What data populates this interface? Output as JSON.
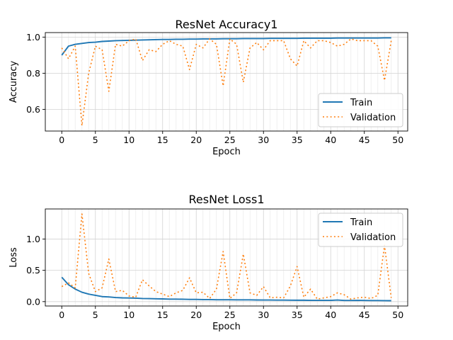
{
  "chart_data": [
    {
      "type": "line",
      "title": "ResNet Accuracy1",
      "xlabel": "Epoch",
      "ylabel": "Accuracy",
      "xlim": [
        -2.45,
        51.45
      ],
      "ylim": [
        0.48,
        1.025
      ],
      "xticks": [
        0,
        5,
        10,
        15,
        20,
        25,
        30,
        35,
        40,
        45,
        50
      ],
      "yticks": [
        0.6,
        0.8,
        1.0
      ],
      "ytick_labels": [
        "0.6",
        "0.8",
        "1.0"
      ],
      "grid": true,
      "legend_position": "lower-right",
      "x": [
        0,
        1,
        2,
        3,
        4,
        5,
        6,
        7,
        8,
        9,
        10,
        11,
        12,
        13,
        14,
        15,
        16,
        17,
        18,
        19,
        20,
        21,
        22,
        23,
        24,
        25,
        26,
        27,
        28,
        29,
        30,
        31,
        32,
        33,
        34,
        35,
        36,
        37,
        38,
        39,
        40,
        41,
        42,
        43,
        44,
        45,
        46,
        47,
        48,
        49
      ],
      "series": [
        {
          "name": "Train",
          "color": "#1f77b4",
          "style": "solid",
          "values": [
            0.9,
            0.95,
            0.96,
            0.965,
            0.97,
            0.972,
            0.976,
            0.978,
            0.98,
            0.981,
            0.982,
            0.983,
            0.984,
            0.985,
            0.986,
            0.987,
            0.987,
            0.988,
            0.988,
            0.989,
            0.989,
            0.99,
            0.99,
            0.99,
            0.991,
            0.991,
            0.991,
            0.992,
            0.992,
            0.992,
            0.992,
            0.993,
            0.993,
            0.993,
            0.993,
            0.993,
            0.994,
            0.994,
            0.994,
            0.994,
            0.994,
            0.995,
            0.995,
            0.995,
            0.995,
            0.995,
            0.995,
            0.995,
            0.996,
            0.996
          ]
        },
        {
          "name": "Validation",
          "color": "#ff7f0e",
          "style": "dotted",
          "values": [
            0.94,
            0.88,
            0.95,
            0.51,
            0.8,
            0.95,
            0.93,
            0.7,
            0.96,
            0.95,
            0.98,
            0.99,
            0.87,
            0.93,
            0.92,
            0.96,
            0.98,
            0.96,
            0.95,
            0.82,
            0.96,
            0.94,
            0.99,
            0.96,
            0.73,
            0.99,
            0.96,
            0.75,
            0.94,
            0.97,
            0.93,
            0.98,
            0.98,
            0.98,
            0.88,
            0.84,
            0.98,
            0.94,
            0.98,
            0.98,
            0.97,
            0.95,
            0.96,
            0.99,
            0.98,
            0.98,
            0.98,
            0.95,
            0.76,
            0.98
          ]
        }
      ]
    },
    {
      "type": "line",
      "title": "ResNet Loss1",
      "xlabel": "Epoch",
      "ylabel": "Loss",
      "xlim": [
        -2.45,
        51.45
      ],
      "ylim": [
        -0.07,
        1.48
      ],
      "xticks": [
        0,
        5,
        10,
        15,
        20,
        25,
        30,
        35,
        40,
        45,
        50
      ],
      "yticks": [
        0.0,
        0.5,
        1.0
      ],
      "ytick_labels": [
        "0.0",
        "0.5",
        "1.0"
      ],
      "grid": true,
      "legend_position": "upper-right",
      "x": [
        0,
        1,
        2,
        3,
        4,
        5,
        6,
        7,
        8,
        9,
        10,
        11,
        12,
        13,
        14,
        15,
        16,
        17,
        18,
        19,
        20,
        21,
        22,
        23,
        24,
        25,
        26,
        27,
        28,
        29,
        30,
        31,
        32,
        33,
        34,
        35,
        36,
        37,
        38,
        39,
        40,
        41,
        42,
        43,
        44,
        45,
        46,
        47,
        48,
        49
      ],
      "series": [
        {
          "name": "Train",
          "color": "#1f77b4",
          "style": "solid",
          "values": [
            0.39,
            0.27,
            0.2,
            0.15,
            0.12,
            0.1,
            0.08,
            0.075,
            0.065,
            0.06,
            0.058,
            0.055,
            0.05,
            0.048,
            0.045,
            0.043,
            0.04,
            0.04,
            0.038,
            0.035,
            0.035,
            0.033,
            0.032,
            0.03,
            0.03,
            0.03,
            0.028,
            0.028,
            0.028,
            0.026,
            0.025,
            0.025,
            0.024,
            0.024,
            0.023,
            0.022,
            0.022,
            0.02,
            0.02,
            0.02,
            0.02,
            0.025,
            0.018,
            0.018,
            0.02,
            0.018,
            0.017,
            0.017,
            0.016,
            0.015
          ]
        },
        {
          "name": "Validation",
          "color": "#ff7f0e",
          "style": "dotted",
          "values": [
            0.24,
            0.3,
            0.22,
            1.4,
            0.45,
            0.16,
            0.22,
            0.68,
            0.16,
            0.18,
            0.09,
            0.07,
            0.35,
            0.25,
            0.16,
            0.12,
            0.08,
            0.14,
            0.18,
            0.38,
            0.14,
            0.15,
            0.05,
            0.2,
            0.8,
            0.05,
            0.14,
            0.76,
            0.14,
            0.1,
            0.24,
            0.06,
            0.07,
            0.06,
            0.25,
            0.56,
            0.07,
            0.2,
            0.04,
            0.06,
            0.08,
            0.14,
            0.11,
            0.04,
            0.06,
            0.07,
            0.05,
            0.1,
            0.9,
            0.06
          ]
        }
      ]
    }
  ]
}
